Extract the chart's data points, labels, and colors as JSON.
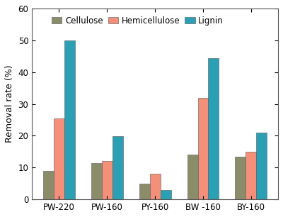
{
  "categories": [
    "PW-220",
    "PW-160",
    "PY-160",
    "BW -160",
    "BY-160"
  ],
  "cellulose": [
    9,
    11.5,
    5,
    14,
    13.5
  ],
  "hemicellulose": [
    25.5,
    12,
    8,
    32,
    15
  ],
  "lignin": [
    50,
    19.8,
    3,
    44.5,
    21
  ],
  "cellulose_color": "#8B8C6A",
  "hemicellulose_color": "#F4907A",
  "lignin_color": "#2BA0B4",
  "ylabel": "Removal rate (%)",
  "ylim": [
    0,
    60
  ],
  "yticks": [
    0,
    10,
    20,
    30,
    40,
    50,
    60
  ],
  "legend_labels": [
    "Cellulose",
    "Hemicellulose",
    "Lignin"
  ],
  "bar_width": 0.22,
  "edge_color": "#555555",
  "background_color": "#FFFFFF",
  "axis_fontsize": 9,
  "tick_fontsize": 8.5,
  "legend_fontsize": 8.5
}
